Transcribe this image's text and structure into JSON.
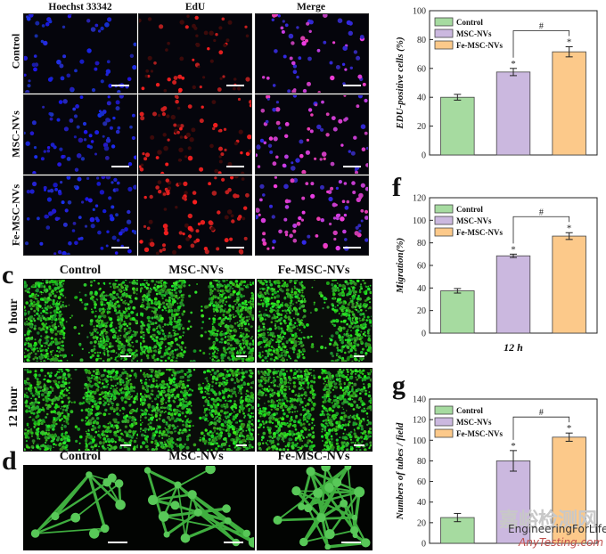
{
  "panel_b": {
    "columns": [
      "Hoechst 33342",
      "EdU",
      "Merge"
    ],
    "rows": [
      "Control",
      "MSC-NVs",
      "Fe-MSC-NVs"
    ]
  },
  "panel_c": {
    "letter": "c",
    "columns": [
      "Control",
      "MSC-NVs",
      "Fe-MSC-NVs"
    ],
    "rows": [
      "0 hour",
      "12 hour"
    ]
  },
  "panel_d": {
    "letter": "d",
    "columns": [
      "Control",
      "MSC-NVs",
      "Fe-MSC-NVs"
    ]
  },
  "chart_data": [
    {
      "id": "edu",
      "type": "bar",
      "categories": [
        "Control",
        "MSC-NVs",
        "Fe-MSC-NVs"
      ],
      "values": [
        40,
        57.5,
        71.5
      ],
      "errors": [
        2,
        2.5,
        3.5
      ],
      "colors": [
        "#a6dba0",
        "#cbb8df",
        "#fcc98a"
      ],
      "ylabel": "EDU-positive cells (%)",
      "xlabel": "",
      "ylim": [
        0,
        100
      ],
      "yticks": [
        0,
        20,
        40,
        60,
        80,
        100
      ],
      "significance": [
        "",
        "*",
        "*"
      ],
      "bracket": {
        "from": 1,
        "to": 2,
        "mark": "#"
      },
      "legend": [
        "Control",
        "MSC-NVs",
        "Fe-MSC-NVs"
      ]
    },
    {
      "id": "migration",
      "letter": "f",
      "type": "bar",
      "categories": [
        "Control",
        "MSC-NVs",
        "Fe-MSC-NVs"
      ],
      "values": [
        37.5,
        68.5,
        86
      ],
      "errors": [
        2,
        1.5,
        3
      ],
      "colors": [
        "#a6dba0",
        "#cbb8df",
        "#fcc98a"
      ],
      "ylabel": "Migration(%)",
      "xlabel": "12 h",
      "ylim": [
        0,
        120
      ],
      "yticks": [
        0,
        20,
        40,
        60,
        80,
        100,
        120
      ],
      "significance": [
        "",
        "*",
        "*"
      ],
      "bracket": {
        "from": 1,
        "to": 2,
        "mark": "#"
      },
      "legend": [
        "Control",
        "MSC-NVs",
        "Fe-MSC-NVs"
      ]
    },
    {
      "id": "tubes",
      "letter": "g",
      "type": "bar",
      "categories": [
        "Control",
        "MSC-NVs",
        "Fe-MSC-NVs"
      ],
      "values": [
        25,
        80,
        103
      ],
      "errors": [
        4,
        10,
        4
      ],
      "colors": [
        "#a6dba0",
        "#cbb8df",
        "#fcc98a"
      ],
      "ylabel": "Numbers of tubes / field",
      "xlabel": "",
      "ylim": [
        0,
        140
      ],
      "yticks": [
        0,
        20,
        40,
        60,
        80,
        100,
        120,
        140
      ],
      "significance": [
        "",
        "*",
        "*"
      ],
      "bracket": {
        "from": 1,
        "to": 2,
        "mark": "#"
      },
      "legend": [
        "Control",
        "MSC-NVs",
        "Fe-MSC-NVs"
      ]
    }
  ],
  "watermark": {
    "cn": "嘉峪检测网",
    "brand": "EngineeringForLife",
    "brand2": "AnyTesting.com"
  }
}
